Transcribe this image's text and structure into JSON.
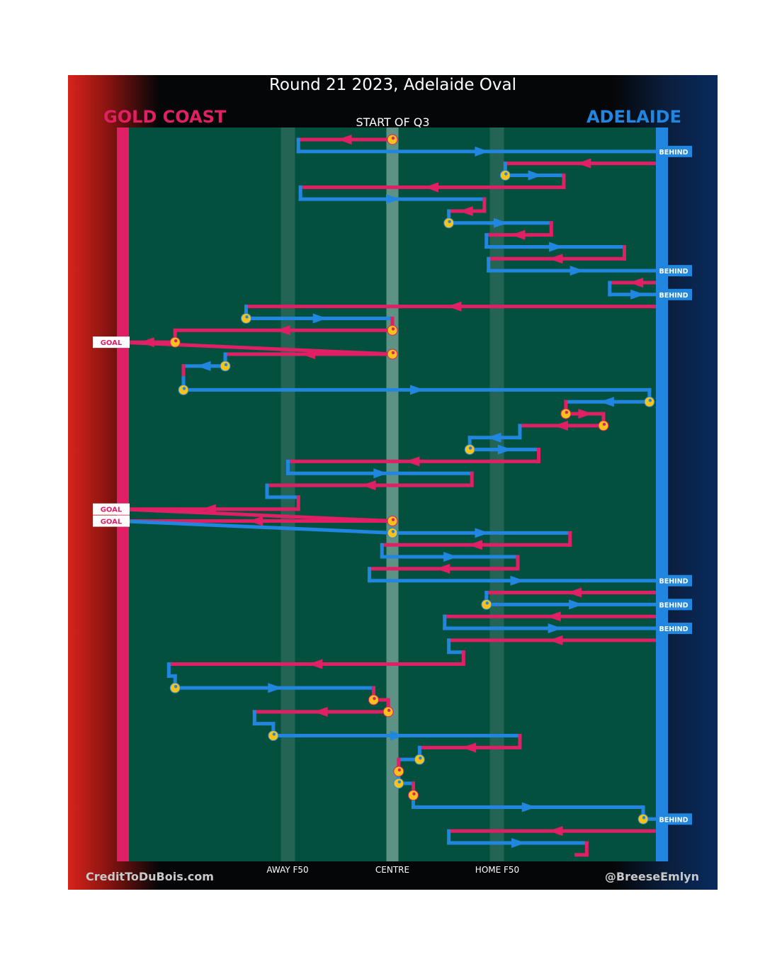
{
  "title": "Round 21 2023, Adelaide Oval",
  "start_label": "START OF Q3",
  "footer": {
    "left": "CreditToDuBois.com",
    "right": "@BreeseEmlyn"
  },
  "colors": {
    "home_team": "#e01f65",
    "away_team": "#2186e0",
    "pitch": "#03503f",
    "marker": "#f7c31a"
  },
  "chart_data": {
    "type": "line",
    "title": "Round 21 2023, Adelaide Oval",
    "subtitle": "START OF Q3",
    "teams": [
      {
        "name": "GOLD COAST",
        "color": "#e01f65",
        "attacks": "left"
      },
      {
        "name": "ADELAIDE",
        "color": "#2186e0",
        "attacks": "right"
      }
    ],
    "x_ticks": [
      {
        "label": "AWAY F50",
        "x": -50
      },
      {
        "label": "CENTRE",
        "x": 0
      },
      {
        "label": "HOME F50",
        "x": 50
      }
    ],
    "x_range": [
      -133,
      130
    ],
    "y_range": [
      0,
      60
    ],
    "outcomes": [
      {
        "step": 1,
        "team": "ADELAIDE",
        "label": "BEHIND"
      },
      {
        "step": 11,
        "team": "ADELAIDE",
        "label": "BEHIND"
      },
      {
        "step": 13,
        "team": "ADELAIDE",
        "label": "BEHIND"
      },
      {
        "step": 17,
        "team": "GOLD COAST",
        "label": "GOAL"
      },
      {
        "step": 31,
        "team": "GOLD COAST",
        "label": "GOAL"
      },
      {
        "step": 32,
        "team": "GOLD COAST",
        "label": "GOAL"
      },
      {
        "step": 37,
        "team": "ADELAIDE",
        "label": "BEHIND"
      },
      {
        "step": 39,
        "team": "ADELAIDE",
        "label": "BEHIND"
      },
      {
        "step": 41,
        "team": "ADELAIDE",
        "label": "BEHIND"
      },
      {
        "step": 57,
        "team": "ADELAIDE",
        "label": "BEHIND"
      }
    ],
    "series": [
      {
        "name": "ball movement",
        "points": [
          {
            "x": 0,
            "y": 0,
            "team": "GOLD COAST",
            "stoppage": true
          },
          {
            "x": -45,
            "y": 0,
            "team": "GOLD COAST"
          },
          {
            "x": -45,
            "y": 1,
            "team": "ADELAIDE"
          },
          {
            "x": 130,
            "y": 1,
            "team": "ADELAIDE",
            "end": "BEHIND"
          },
          {
            "x": 130,
            "y": 2,
            "team": "GOLD COAST"
          },
          {
            "x": 54,
            "y": 2,
            "team": "GOLD COAST"
          },
          {
            "x": 54,
            "y": 3,
            "team": "ADELAIDE",
            "stoppage": true
          },
          {
            "x": 82,
            "y": 3,
            "team": "ADELAIDE"
          },
          {
            "x": 82,
            "y": 4,
            "team": "GOLD COAST"
          },
          {
            "x": -44,
            "y": 4,
            "team": "GOLD COAST"
          },
          {
            "x": -44,
            "y": 5,
            "team": "ADELAIDE"
          },
          {
            "x": 44,
            "y": 5,
            "team": "ADELAIDE"
          },
          {
            "x": 44,
            "y": 6,
            "team": "GOLD COAST"
          },
          {
            "x": 27,
            "y": 6,
            "team": "GOLD COAST"
          },
          {
            "x": 27,
            "y": 7,
            "team": "ADELAIDE",
            "stoppage": true
          },
          {
            "x": 76,
            "y": 7,
            "team": "ADELAIDE"
          },
          {
            "x": 76,
            "y": 8,
            "team": "GOLD COAST"
          },
          {
            "x": 45,
            "y": 8,
            "team": "GOLD COAST"
          },
          {
            "x": 45,
            "y": 9,
            "team": "ADELAIDE"
          },
          {
            "x": 111,
            "y": 9,
            "team": "ADELAIDE"
          },
          {
            "x": 111,
            "y": 10,
            "team": "GOLD COAST"
          },
          {
            "x": 46,
            "y": 10,
            "team": "GOLD COAST"
          },
          {
            "x": 46,
            "y": 11,
            "team": "ADELAIDE"
          },
          {
            "x": 130,
            "y": 11,
            "team": "ADELAIDE",
            "end": "BEHIND"
          },
          {
            "x": 130,
            "y": 12,
            "team": "GOLD COAST"
          },
          {
            "x": 104,
            "y": 12,
            "team": "GOLD COAST"
          },
          {
            "x": 104,
            "y": 13,
            "team": "ADELAIDE"
          },
          {
            "x": 130,
            "y": 13,
            "team": "ADELAIDE",
            "end": "BEHIND"
          },
          {
            "x": 130,
            "y": 14,
            "team": "GOLD COAST"
          },
          {
            "x": -70,
            "y": 14,
            "team": "GOLD COAST"
          },
          {
            "x": -70,
            "y": 15,
            "team": "ADELAIDE",
            "stoppage": true
          },
          {
            "x": 0,
            "y": 15,
            "team": "ADELAIDE"
          },
          {
            "x": 0,
            "y": 16,
            "team": "GOLD COAST",
            "stoppage": true
          },
          {
            "x": -104,
            "y": 16,
            "team": "GOLD COAST"
          },
          {
            "x": -104,
            "y": 17,
            "team": "GOLD COAST",
            "stoppage": true
          },
          {
            "x": -130,
            "y": 17,
            "team": "GOLD COAST",
            "end": "GOAL"
          },
          {
            "x": 0,
            "y": 18,
            "team": "GOLD COAST",
            "stoppage": true
          },
          {
            "x": -80,
            "y": 18,
            "team": "GOLD COAST"
          },
          {
            "x": -80,
            "y": 19,
            "team": "ADELAIDE",
            "stoppage": true
          },
          {
            "x": -100,
            "y": 19,
            "team": "ADELAIDE"
          },
          {
            "x": -100,
            "y": 20,
            "team": "GOLD COAST"
          },
          {
            "x": -100,
            "y": 21,
            "team": "ADELAIDE",
            "stoppage": true
          },
          {
            "x": 123,
            "y": 21,
            "team": "ADELAIDE"
          },
          {
            "x": 123,
            "y": 22,
            "team": "ADELAIDE",
            "stoppage": true
          },
          {
            "x": 83,
            "y": 22,
            "team": "ADELAIDE"
          },
          {
            "x": 83,
            "y": 23,
            "team": "GOLD COAST",
            "stoppage": true
          },
          {
            "x": 101,
            "y": 23,
            "team": "GOLD COAST"
          },
          {
            "x": 101,
            "y": 24,
            "team": "GOLD COAST",
            "stoppage": true
          },
          {
            "x": 61,
            "y": 24,
            "team": "GOLD COAST"
          },
          {
            "x": 61,
            "y": 25,
            "team": "ADELAIDE"
          },
          {
            "x": 37,
            "y": 25,
            "team": "ADELAIDE"
          },
          {
            "x": 37,
            "y": 26,
            "team": "ADELAIDE",
            "stoppage": true
          },
          {
            "x": 70,
            "y": 26,
            "team": "ADELAIDE"
          },
          {
            "x": 70,
            "y": 27,
            "team": "GOLD COAST"
          },
          {
            "x": -50,
            "y": 27,
            "team": "GOLD COAST"
          },
          {
            "x": -50,
            "y": 28,
            "team": "ADELAIDE"
          },
          {
            "x": 38,
            "y": 28,
            "team": "ADELAIDE"
          },
          {
            "x": 38,
            "y": 29,
            "team": "GOLD COAST"
          },
          {
            "x": -60,
            "y": 29,
            "team": "GOLD COAST"
          },
          {
            "x": -60,
            "y": 30,
            "team": "ADELAIDE"
          },
          {
            "x": -45,
            "y": 30,
            "team": "ADELAIDE"
          },
          {
            "x": -45,
            "y": 31,
            "team": "GOLD COAST"
          },
          {
            "x": -130,
            "y": 31,
            "team": "GOLD COAST",
            "end": "GOAL"
          },
          {
            "x": 0,
            "y": 32,
            "team": "GOLD COAST",
            "stoppage": true
          },
          {
            "x": -130,
            "y": 32,
            "team": "GOLD COAST",
            "end": "GOAL"
          },
          {
            "x": 0,
            "y": 33,
            "team": "ADELAIDE",
            "stoppage": true
          },
          {
            "x": 85,
            "y": 33,
            "team": "ADELAIDE"
          },
          {
            "x": 85,
            "y": 34,
            "team": "GOLD COAST"
          },
          {
            "x": -5,
            "y": 34,
            "team": "GOLD COAST"
          },
          {
            "x": -5,
            "y": 35,
            "team": "ADELAIDE"
          },
          {
            "x": 60,
            "y": 35,
            "team": "ADELAIDE"
          },
          {
            "x": 60,
            "y": 36,
            "team": "GOLD COAST"
          },
          {
            "x": -11,
            "y": 36,
            "team": "GOLD COAST"
          },
          {
            "x": -11,
            "y": 37,
            "team": "ADELAIDE"
          },
          {
            "x": 130,
            "y": 37,
            "team": "ADELAIDE",
            "end": "BEHIND"
          },
          {
            "x": 130,
            "y": 38,
            "team": "GOLD COAST"
          },
          {
            "x": 45,
            "y": 38,
            "team": "GOLD COAST"
          },
          {
            "x": 45,
            "y": 39,
            "team": "ADELAIDE",
            "stoppage": true
          },
          {
            "x": 130,
            "y": 39,
            "team": "ADELAIDE",
            "end": "BEHIND"
          },
          {
            "x": 130,
            "y": 40,
            "team": "GOLD COAST"
          },
          {
            "x": 25,
            "y": 40,
            "team": "GOLD COAST"
          },
          {
            "x": 25,
            "y": 41,
            "team": "ADELAIDE"
          },
          {
            "x": 130,
            "y": 41,
            "team": "ADELAIDE",
            "end": "BEHIND"
          },
          {
            "x": 130,
            "y": 42,
            "team": "GOLD COAST"
          },
          {
            "x": 27,
            "y": 42,
            "team": "GOLD COAST"
          },
          {
            "x": 27,
            "y": 43,
            "team": "ADELAIDE"
          },
          {
            "x": 34,
            "y": 43,
            "team": "ADELAIDE"
          },
          {
            "x": 34,
            "y": 44,
            "team": "GOLD COAST"
          },
          {
            "x": -107,
            "y": 44,
            "team": "GOLD COAST"
          },
          {
            "x": -107,
            "y": 45,
            "team": "ADELAIDE"
          },
          {
            "x": -104,
            "y": 45,
            "team": "ADELAIDE"
          },
          {
            "x": -104,
            "y": 46,
            "team": "ADELAIDE",
            "stoppage": true
          },
          {
            "x": -9,
            "y": 46,
            "team": "ADELAIDE"
          },
          {
            "x": -9,
            "y": 47,
            "team": "GOLD COAST"
          },
          {
            "x": -9,
            "y": 47,
            "team": "GOLD COAST",
            "stoppage": true
          },
          {
            "x": -2,
            "y": 47,
            "team": "GOLD COAST"
          },
          {
            "x": -2,
            "y": 48,
            "team": "GOLD COAST",
            "stoppage": true
          },
          {
            "x": -66,
            "y": 48,
            "team": "GOLD COAST"
          },
          {
            "x": -66,
            "y": 49,
            "team": "ADELAIDE"
          },
          {
            "x": -57,
            "y": 49,
            "team": "ADELAIDE"
          },
          {
            "x": -57,
            "y": 50,
            "team": "ADELAIDE",
            "stoppage": true
          },
          {
            "x": 61,
            "y": 50,
            "team": "ADELAIDE"
          },
          {
            "x": 61,
            "y": 51,
            "team": "GOLD COAST"
          },
          {
            "x": 13,
            "y": 51,
            "team": "GOLD COAST"
          },
          {
            "x": 13,
            "y": 52,
            "team": "ADELAIDE",
            "stoppage": true
          },
          {
            "x": 3,
            "y": 52,
            "team": "ADELAIDE"
          },
          {
            "x": 3,
            "y": 53,
            "team": "GOLD COAST",
            "stoppage": true
          },
          {
            "x": 3,
            "y": 54,
            "team": "ADELAIDE",
            "stoppage": true
          },
          {
            "x": 10,
            "y": 54,
            "team": "ADELAIDE"
          },
          {
            "x": 10,
            "y": 55,
            "team": "GOLD COAST",
            "stoppage": true
          },
          {
            "x": 10,
            "y": 56,
            "team": "ADELAIDE"
          },
          {
            "x": 120,
            "y": 56,
            "team": "ADELAIDE"
          },
          {
            "x": 120,
            "y": 57,
            "team": "ADELAIDE",
            "stoppage": true
          },
          {
            "x": 130,
            "y": 57,
            "team": "ADELAIDE",
            "end": "BEHIND"
          },
          {
            "x": 130,
            "y": 58,
            "team": "GOLD COAST"
          },
          {
            "x": 27,
            "y": 58,
            "team": "GOLD COAST"
          },
          {
            "x": 27,
            "y": 59,
            "team": "ADELAIDE"
          },
          {
            "x": 93,
            "y": 59,
            "team": "ADELAIDE"
          },
          {
            "x": 93,
            "y": 60,
            "team": "GOLD COAST"
          },
          {
            "x": 88,
            "y": 60,
            "team": "GOLD COAST"
          }
        ]
      }
    ]
  }
}
